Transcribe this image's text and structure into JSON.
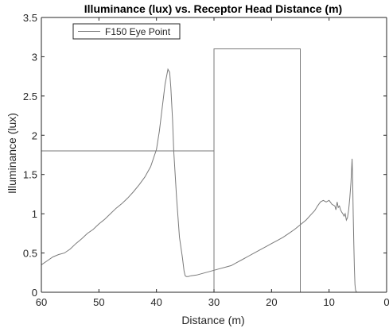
{
  "chart_data": {
    "type": "line",
    "title": "Illuminance (lux) vs. Receptor Head Distance (m)",
    "xlabel": "Distance (m)",
    "ylabel": "Illuminance (lux)",
    "xlim": [
      60,
      0
    ],
    "ylim": [
      0,
      3.5
    ],
    "x_reversed": true,
    "xticks": [
      60,
      50,
      40,
      30,
      20,
      10,
      0
    ],
    "yticks": [
      0,
      0.5,
      1,
      1.5,
      2,
      2.5,
      3,
      3.5
    ],
    "xtick_labels": [
      "60",
      "50",
      "40",
      "30",
      "20",
      "10",
      "0"
    ],
    "ytick_labels": [
      "0",
      "0.5",
      "1",
      "1.5",
      "2",
      "2.5",
      "3",
      "3.5"
    ],
    "grid": false,
    "legend_position": "top-left",
    "legend": [
      "F150 Eye Point"
    ],
    "series": [
      {
        "name": "F150 Eye Point",
        "color": "#7a7a7a",
        "x": [
          60,
          59,
          58,
          57,
          56,
          55,
          54,
          53,
          52,
          51,
          50,
          49,
          48,
          47,
          46,
          45,
          44,
          43,
          42,
          41,
          40,
          39.5,
          39,
          38.5,
          38,
          37.7,
          37.5,
          37.2,
          37,
          36.5,
          36,
          35.5,
          35.2,
          35,
          34.8,
          34.5,
          34,
          33,
          32,
          31,
          30,
          29,
          28,
          27,
          26,
          25,
          24,
          23,
          22,
          21,
          20,
          19,
          18,
          17,
          16,
          15,
          14,
          13,
          12.5,
          12,
          11.5,
          11,
          10.5,
          10,
          9.5,
          9,
          8.8,
          8.6,
          8.4,
          8.2,
          8,
          7.8,
          7.6,
          7.4,
          7.2,
          7,
          6.8,
          6.6,
          6.4,
          6.2,
          6,
          5.9,
          5.8,
          5.7,
          5.6,
          5.5,
          5.4,
          5.3,
          5.2,
          5.1,
          5
        ],
        "y": [
          0.35,
          0.4,
          0.45,
          0.48,
          0.5,
          0.55,
          0.62,
          0.68,
          0.75,
          0.8,
          0.87,
          0.93,
          1.0,
          1.07,
          1.13,
          1.2,
          1.28,
          1.37,
          1.47,
          1.6,
          1.82,
          2.05,
          2.35,
          2.65,
          2.84,
          2.8,
          2.6,
          2.2,
          1.8,
          1.2,
          0.7,
          0.45,
          0.27,
          0.21,
          0.2,
          0.2,
          0.21,
          0.22,
          0.24,
          0.26,
          0.28,
          0.3,
          0.32,
          0.34,
          0.38,
          0.42,
          0.46,
          0.5,
          0.54,
          0.58,
          0.62,
          0.66,
          0.7,
          0.75,
          0.8,
          0.86,
          0.92,
          1.0,
          1.04,
          1.1,
          1.15,
          1.17,
          1.15,
          1.17,
          1.12,
          1.1,
          1.05,
          1.15,
          1.08,
          1.1,
          1.05,
          1.02,
          1.0,
          0.97,
          1.0,
          0.92,
          0.95,
          1.05,
          1.2,
          1.4,
          1.7,
          1.45,
          1.0,
          0.6,
          0.3,
          0.1,
          0.03,
          0.01,
          0.0,
          0.0,
          0.0
        ]
      }
    ],
    "annotations": [
      {
        "type": "line",
        "color": "#7a7a7a",
        "x": [
          60,
          30
        ],
        "y": [
          1.8,
          1.8
        ]
      },
      {
        "type": "rect",
        "color": "#7a7a7a",
        "x": [
          30,
          15
        ],
        "y": [
          0,
          3.1
        ]
      }
    ]
  }
}
